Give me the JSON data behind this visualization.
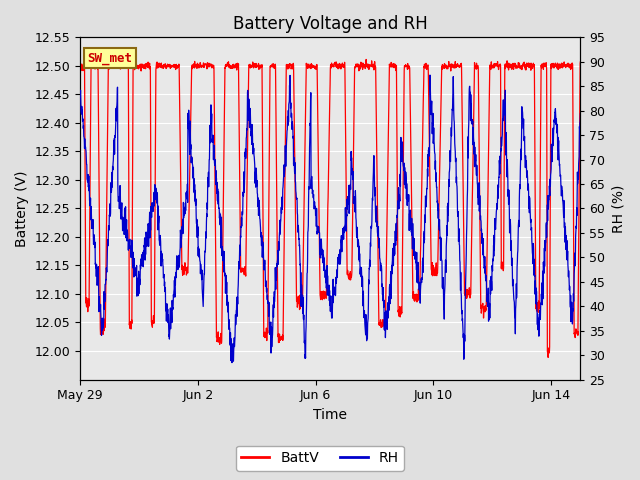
{
  "title": "Battery Voltage and RH",
  "xlabel": "Time",
  "ylabel_left": "Battery (V)",
  "ylabel_right": "RH (%)",
  "ylim_left": [
    11.95,
    12.55
  ],
  "ylim_right": [
    25,
    95
  ],
  "yticks_left": [
    12.0,
    12.05,
    12.1,
    12.15,
    12.2,
    12.25,
    12.3,
    12.35,
    12.4,
    12.45,
    12.5,
    12.55
  ],
  "yticks_right": [
    25,
    30,
    35,
    40,
    45,
    50,
    55,
    60,
    65,
    70,
    75,
    80,
    85,
    90,
    95
  ],
  "xtick_labels": [
    "May 29",
    "Jun 2",
    "Jun 6",
    "Jun 10",
    "Jun 14"
  ],
  "xtick_positions": [
    0,
    4,
    8,
    12,
    16
  ],
  "color_batt": "#ff0000",
  "color_rh": "#0000cc",
  "bg_color": "#e0e0e0",
  "plot_bg": "#e8e8e8",
  "legend_label_batt": "BattV",
  "legend_label_rh": "RH",
  "box_label": "SW_met",
  "box_facecolor": "#ffff99",
  "box_edgecolor": "#8b6914",
  "title_fontsize": 12,
  "label_fontsize": 10,
  "tick_fontsize": 9,
  "grid_color": "#ffffff",
  "linewidth": 0.9
}
